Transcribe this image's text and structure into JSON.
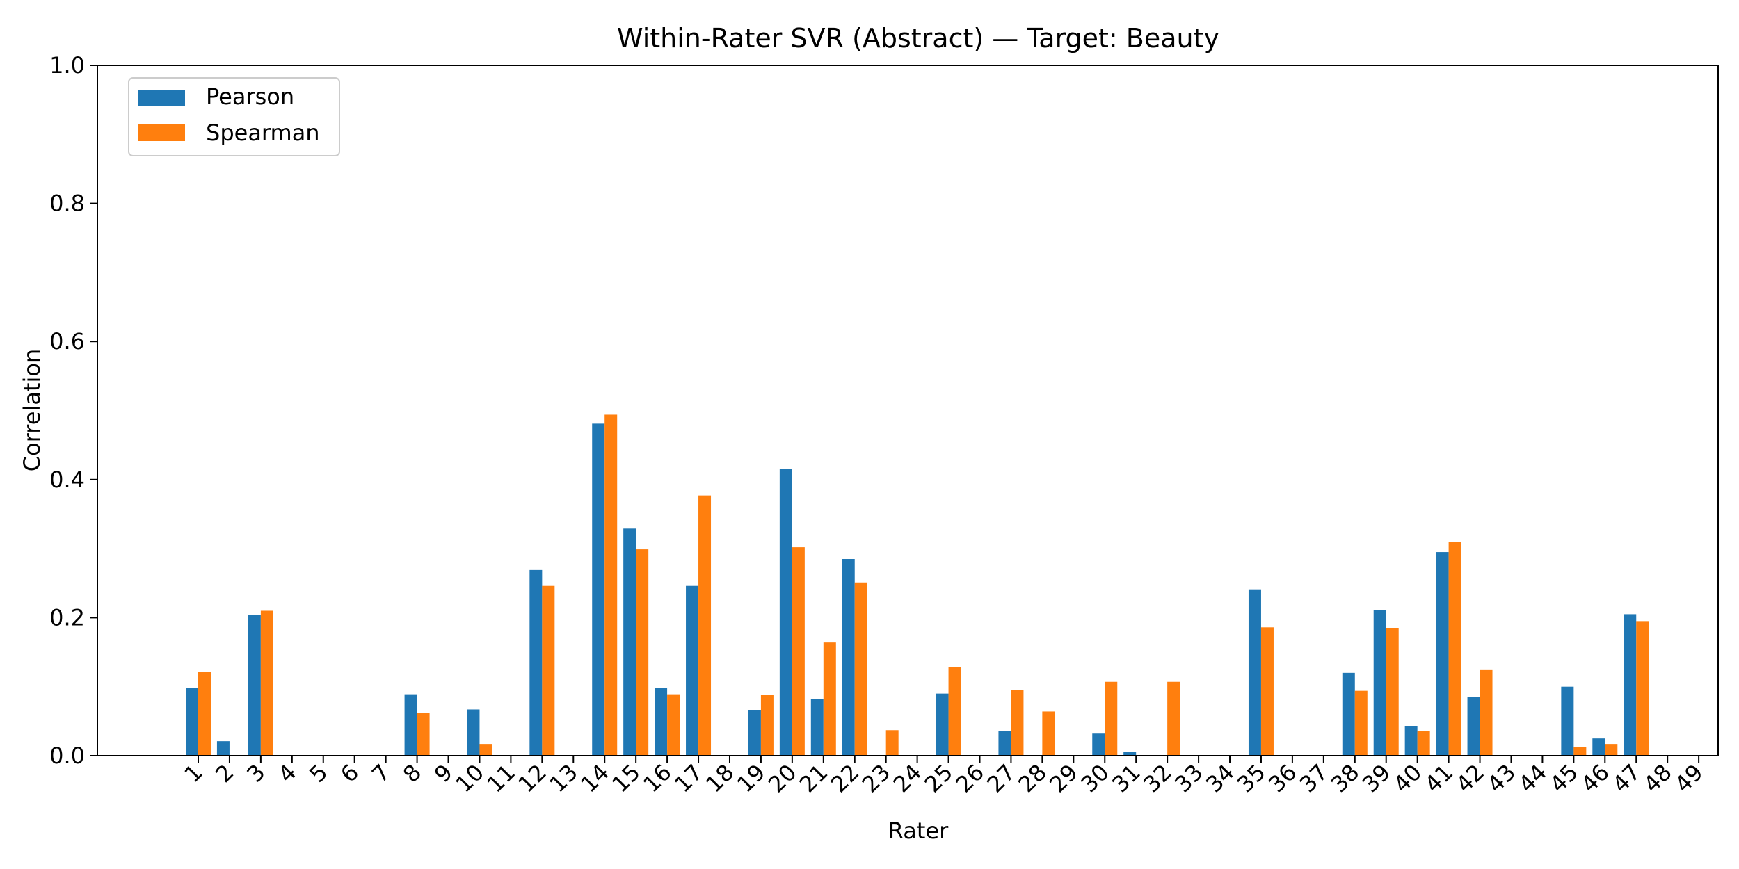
{
  "colors": {
    "pearson": "#1f77b4",
    "spearman": "#ff7f0e",
    "axis": "#000000",
    "background": "#ffffff"
  },
  "chart_data": {
    "type": "bar",
    "title": "Within-Rater SVR (Abstract) — Target: Beauty",
    "xlabel": "Rater",
    "ylabel": "Correlation",
    "ylim": [
      0,
      1.0
    ],
    "yticks": [
      "0.0",
      "0.2",
      "0.4",
      "0.6",
      "0.8",
      "1.0"
    ],
    "grid": false,
    "legend_position": "top-left",
    "categories": [
      "1",
      "2",
      "3",
      "4",
      "5",
      "6",
      "7",
      "8",
      "9",
      "10",
      "11",
      "12",
      "13",
      "14",
      "15",
      "16",
      "17",
      "18",
      "19",
      "20",
      "21",
      "22",
      "23",
      "24",
      "25",
      "26",
      "27",
      "28",
      "29",
      "30",
      "31",
      "32",
      "33",
      "34",
      "35",
      "36",
      "37",
      "38",
      "39",
      "40",
      "41",
      "42",
      "43",
      "44",
      "45",
      "46",
      "47",
      "48",
      "49"
    ],
    "series": [
      {
        "name": "Pearson",
        "color": "#1f77b4",
        "values": [
          0.098,
          0.021,
          0.204,
          0,
          0,
          0,
          0,
          0.089,
          0,
          0.067,
          0,
          0.269,
          0,
          0.481,
          0.329,
          0.098,
          0.246,
          0,
          0.066,
          0.415,
          0.082,
          0.285,
          0,
          0,
          0.09,
          0,
          0.036,
          0,
          0,
          0.032,
          0.006,
          0,
          0,
          0,
          0.241,
          0,
          0,
          0.12,
          0.211,
          0.043,
          0.295,
          0.085,
          0,
          0,
          0.1,
          0.025,
          0.205,
          0,
          0
        ]
      },
      {
        "name": "Spearman",
        "color": "#ff7f0e",
        "values": [
          0.121,
          0,
          0.21,
          0,
          0,
          0,
          0,
          0.062,
          0,
          0.017,
          0,
          0.246,
          0,
          0.494,
          0.299,
          0.089,
          0.377,
          0,
          0.088,
          0.302,
          0.164,
          0.251,
          0.037,
          0,
          0.128,
          0,
          0.095,
          0.064,
          0,
          0.107,
          0,
          0.107,
          0,
          0,
          0.186,
          0,
          0,
          0.094,
          0.185,
          0.036,
          0.31,
          0.124,
          0,
          0,
          0.013,
          0.017,
          0.195,
          0,
          0
        ]
      }
    ]
  }
}
